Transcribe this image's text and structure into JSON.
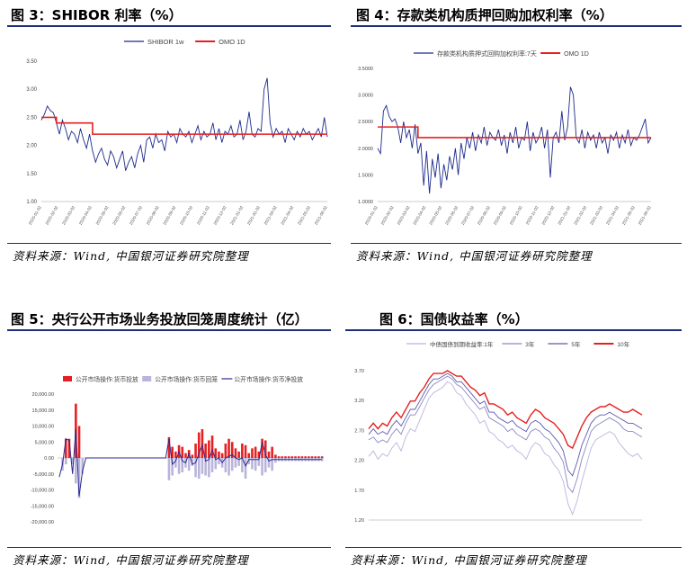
{
  "colors": {
    "navy": "#1c2a8c",
    "red": "#e62020",
    "lav": "#b9b4dc",
    "rule": "#1f2e7a"
  },
  "source_text": "资料来源：Wind, 中国银河证券研究院整理",
  "chart_data": [
    {
      "id": "fig3",
      "type": "line",
      "title": "图 3：SHIBOR 利率（%）",
      "ylim": [
        1.0,
        3.5
      ],
      "yticks": [
        "1.00",
        "1.50",
        "2.00",
        "2.50",
        "3.00",
        "3.50"
      ],
      "xticks": [
        "2020-01-02",
        "2020-02-02",
        "2020-03-02",
        "2020-04-02",
        "2020-05-02",
        "2020-06-02",
        "2020-07-02",
        "2020-08-02",
        "2020-09-02",
        "2020-10-02",
        "2020-11-02",
        "2020-12-02",
        "2021-01-02",
        "2021-02-02",
        "2021-03-02",
        "2021-04-02",
        "2021-05-02",
        "2021-06-02"
      ],
      "series": [
        {
          "name": "SHIBOR 1w",
          "color": "#1c2a8c",
          "values": [
            2.45,
            2.55,
            2.7,
            2.62,
            2.58,
            2.4,
            2.2,
            2.45,
            2.3,
            2.1,
            2.25,
            2.2,
            2.05,
            2.3,
            2.1,
            1.95,
            2.2,
            1.9,
            1.7,
            1.85,
            1.95,
            1.75,
            1.65,
            1.9,
            1.8,
            1.6,
            1.75,
            1.9,
            1.55,
            1.7,
            1.8,
            1.6,
            1.85,
            2.0,
            1.7,
            2.1,
            2.15,
            1.95,
            2.2,
            2.05,
            2.1,
            1.9,
            2.25,
            2.15,
            2.2,
            2.05,
            2.3,
            2.2,
            2.15,
            2.25,
            2.05,
            2.2,
            2.35,
            2.1,
            2.25,
            2.15,
            2.2,
            2.4,
            2.1,
            2.3,
            2.05,
            2.25,
            2.2,
            2.35,
            2.15,
            2.2,
            2.45,
            2.1,
            2.25,
            2.6,
            2.2,
            2.15,
            2.3,
            2.25,
            3.0,
            3.2,
            2.4,
            2.15,
            2.3,
            2.2,
            2.25,
            2.05,
            2.3,
            2.2,
            2.1,
            2.25,
            2.15,
            2.3,
            2.2,
            2.25,
            2.1,
            2.2,
            2.3,
            2.15,
            2.5,
            2.15
          ]
        },
        {
          "name": "OMO 1D",
          "color": "#e62020",
          "values": [
            2.5,
            2.5,
            2.5,
            2.5,
            2.5,
            2.4,
            2.4,
            2.4,
            2.4,
            2.4,
            2.4,
            2.4,
            2.4,
            2.4,
            2.4,
            2.4,
            2.4,
            2.2,
            2.2,
            2.2,
            2.2,
            2.2,
            2.2,
            2.2,
            2.2,
            2.2,
            2.2,
            2.2,
            2.2,
            2.2,
            2.2,
            2.2,
            2.2,
            2.2,
            2.2,
            2.2,
            2.2,
            2.2,
            2.2,
            2.2,
            2.2,
            2.2,
            2.2,
            2.2,
            2.2,
            2.2,
            2.2,
            2.2,
            2.2,
            2.2,
            2.2,
            2.2,
            2.2,
            2.2,
            2.2,
            2.2,
            2.2,
            2.2,
            2.2,
            2.2,
            2.2,
            2.2,
            2.2,
            2.2,
            2.2,
            2.2,
            2.2,
            2.2,
            2.2,
            2.2,
            2.2,
            2.2,
            2.2,
            2.2,
            2.2,
            2.2,
            2.2,
            2.2,
            2.2,
            2.2,
            2.2,
            2.2,
            2.2,
            2.2,
            2.2,
            2.2,
            2.2,
            2.2,
            2.2,
            2.2,
            2.2,
            2.2,
            2.2,
            2.2,
            2.2,
            2.2
          ]
        }
      ]
    },
    {
      "id": "fig4",
      "type": "line",
      "title": "图 4：存款类机构质押回购加权利率（%）",
      "ylim": [
        1.0,
        3.5
      ],
      "yticks": [
        "1.0000",
        "1.5000",
        "2.0000",
        "2.5000",
        "3.0000",
        "3.5000"
      ],
      "xticks": [
        "2020-01-02",
        "2020-02-02",
        "2020-03-02",
        "2020-04-02",
        "2020-05-02",
        "2020-06-02",
        "2020-07-02",
        "2020-08-02",
        "2020-09-02",
        "2020-10-02",
        "2020-11-02",
        "2020-12-02",
        "2021-01-02",
        "2021-02-02",
        "2021-03-02",
        "2021-04-02",
        "2021-05-02",
        "2021-06-02"
      ],
      "series": [
        {
          "name": "存款类机构质押式回购加权利率:7天",
          "color": "#1c2a8c",
          "values": [
            2.0,
            1.9,
            2.7,
            2.8,
            2.6,
            2.5,
            2.55,
            2.4,
            2.1,
            2.5,
            2.2,
            2.35,
            2.0,
            2.45,
            1.9,
            2.1,
            1.3,
            1.95,
            1.15,
            1.8,
            1.45,
            1.9,
            1.25,
            1.7,
            1.4,
            1.85,
            1.6,
            2.0,
            1.5,
            2.1,
            1.8,
            2.2,
            2.0,
            2.3,
            1.95,
            2.25,
            2.1,
            2.4,
            2.05,
            2.3,
            2.2,
            2.15,
            2.35,
            2.05,
            2.25,
            1.9,
            2.3,
            2.1,
            2.4,
            2.0,
            2.2,
            2.15,
            2.5,
            1.95,
            2.3,
            2.1,
            2.2,
            2.4,
            2.0,
            2.35,
            1.45,
            2.2,
            2.3,
            2.1,
            2.7,
            2.15,
            2.4,
            3.15,
            3.0,
            2.2,
            2.1,
            2.35,
            2.0,
            2.3,
            2.15,
            2.25,
            2.0,
            2.3,
            2.1,
            2.2,
            1.9,
            2.25,
            2.15,
            2.3,
            2.0,
            2.25,
            2.1,
            2.35,
            2.05,
            2.2,
            2.15,
            2.25,
            2.4,
            2.55,
            2.1,
            2.2
          ]
        },
        {
          "name": "OMO 1D",
          "color": "#e62020",
          "values": [
            2.4,
            2.4,
            2.4,
            2.4,
            2.4,
            2.4,
            2.4,
            2.4,
            2.4,
            2.4,
            2.4,
            2.4,
            2.4,
            2.4,
            2.2,
            2.2,
            2.2,
            2.2,
            2.2,
            2.2,
            2.2,
            2.2,
            2.2,
            2.2,
            2.2,
            2.2,
            2.2,
            2.2,
            2.2,
            2.2,
            2.2,
            2.2,
            2.2,
            2.2,
            2.2,
            2.2,
            2.2,
            2.2,
            2.2,
            2.2,
            2.2,
            2.2,
            2.2,
            2.2,
            2.2,
            2.2,
            2.2,
            2.2,
            2.2,
            2.2,
            2.2,
            2.2,
            2.2,
            2.2,
            2.2,
            2.2,
            2.2,
            2.2,
            2.2,
            2.2,
            2.2,
            2.2,
            2.2,
            2.2,
            2.2,
            2.2,
            2.2,
            2.2,
            2.2,
            2.2,
            2.2,
            2.2,
            2.2,
            2.2,
            2.2,
            2.2,
            2.2,
            2.2,
            2.2,
            2.2,
            2.2,
            2.2,
            2.2,
            2.2,
            2.2,
            2.2,
            2.2,
            2.2,
            2.2,
            2.2,
            2.2,
            2.2,
            2.2,
            2.2,
            2.2,
            2.2
          ]
        }
      ]
    },
    {
      "id": "fig5",
      "type": "bar",
      "title": "图 5：央行公开市场业务投放回笼周度统计（亿）",
      "ylim": [
        -20000,
        20000
      ],
      "yticks": [
        "20,000.00",
        "15,000.00",
        "10,000.00",
        "5,000.00",
        "0.00",
        "-5,000.00",
        "-10,000.00",
        "-15,000.00",
        "-20,000.00"
      ],
      "series": [
        {
          "name": "公开市场操作:货币投放",
          "color": "#e62020",
          "values": [
            0,
            0,
            6000,
            6000,
            0,
            17000,
            10000,
            0,
            0,
            0,
            0,
            0,
            0,
            0,
            0,
            0,
            0,
            0,
            0,
            0,
            0,
            0,
            0,
            0,
            0,
            0,
            0,
            0,
            0,
            0,
            0,
            0,
            0,
            6500,
            3500,
            2000,
            4000,
            3500,
            1500,
            2500,
            1000,
            4500,
            8000,
            9000,
            4500,
            5500,
            7000,
            3000,
            2000,
            1500,
            4500,
            6000,
            5000,
            3000,
            2000,
            4500,
            4000,
            1500,
            3000,
            3500,
            2000,
            6000,
            5500,
            2000,
            3500,
            1000,
            500,
            500,
            500,
            500,
            500,
            500,
            500,
            500,
            500,
            500,
            500,
            500,
            500,
            500
          ]
        },
        {
          "name": "公开市场操作:货币回笼",
          "color": "#b9b4dc",
          "values": [
            0,
            -4000,
            -2000,
            0,
            -2000,
            -8000,
            -12500,
            -5000,
            0,
            0,
            0,
            0,
            0,
            0,
            0,
            0,
            0,
            0,
            0,
            0,
            0,
            0,
            0,
            0,
            0,
            0,
            0,
            0,
            0,
            0,
            0,
            0,
            0,
            -7000,
            -5500,
            -3000,
            -5000,
            -4500,
            -3000,
            -4000,
            -2500,
            -6000,
            -6500,
            -5000,
            -5500,
            -6000,
            -4500,
            -3500,
            -2000,
            -3000,
            -4500,
            -5500,
            -4000,
            -3000,
            -2500,
            -4500,
            -6500,
            -2000,
            -3500,
            -4000,
            -2500,
            -5500,
            -4500,
            -3000,
            -4000,
            -1500,
            -1000,
            -1000,
            -1000,
            -1000,
            -1000,
            -1000,
            -1000,
            -1000,
            -1000,
            -1000,
            -1000,
            -1000,
            -1000,
            -1000
          ]
        },
        {
          "name": "公开市场操作:货币净投放",
          "color": "#2a2a90",
          "values": [
            -6000,
            -2000,
            6000,
            5500,
            -5000,
            9000,
            -12000,
            -4000,
            0,
            0,
            0,
            0,
            0,
            0,
            0,
            0,
            0,
            0,
            0,
            0,
            0,
            0,
            0,
            0,
            0,
            0,
            0,
            0,
            0,
            0,
            0,
            0,
            0,
            6000,
            -2000,
            -1000,
            2000,
            -1000,
            -1500,
            1500,
            -2000,
            -1500,
            1500,
            4000,
            -1000,
            -500,
            2500,
            -500,
            0,
            -1500,
            0,
            500,
            1000,
            0,
            -500,
            0,
            -2500,
            -500,
            -500,
            -500,
            -500,
            5000,
            1000,
            -1000,
            -500,
            -500,
            -500,
            -500,
            -500,
            -500,
            -500,
            -500,
            -500,
            -500,
            -500,
            -500,
            -500,
            -500,
            -500,
            -500
          ]
        }
      ]
    },
    {
      "id": "fig6",
      "type": "line",
      "title": "图 6：国债收益率（%）",
      "ylim": [
        1.2,
        3.9
      ],
      "yticks": [
        "1.20",
        "1.70",
        "2.20",
        "2.70",
        "3.20",
        "3.70"
      ],
      "series": [
        {
          "name": "中债国债到期收益率:1年",
          "color": "#b9b4dc",
          "values": [
            2.35,
            2.45,
            2.3,
            2.4,
            2.35,
            2.5,
            2.6,
            2.45,
            2.7,
            2.85,
            2.8,
            3.0,
            3.2,
            3.4,
            3.5,
            3.55,
            3.6,
            3.7,
            3.65,
            3.5,
            3.45,
            3.3,
            3.2,
            3.1,
            2.95,
            3.0,
            2.8,
            2.75,
            2.65,
            2.6,
            2.5,
            2.55,
            2.45,
            2.4,
            2.3,
            2.5,
            2.6,
            2.55,
            2.4,
            2.35,
            2.2,
            2.1,
            1.9,
            1.5,
            1.3,
            1.55,
            1.9,
            2.2,
            2.5,
            2.65,
            2.7,
            2.75,
            2.8,
            2.75,
            2.6,
            2.5,
            2.4,
            2.35,
            2.4,
            2.3
          ]
        },
        {
          "name": "3年",
          "color": "#8a86c6",
          "values": [
            2.65,
            2.7,
            2.6,
            2.65,
            2.6,
            2.75,
            2.85,
            2.75,
            2.95,
            3.1,
            3.1,
            3.25,
            3.4,
            3.55,
            3.65,
            3.7,
            3.75,
            3.8,
            3.75,
            3.65,
            3.6,
            3.5,
            3.4,
            3.3,
            3.2,
            3.25,
            3.05,
            3.0,
            2.95,
            2.9,
            2.8,
            2.85,
            2.75,
            2.7,
            2.65,
            2.8,
            2.85,
            2.8,
            2.7,
            2.65,
            2.5,
            2.4,
            2.25,
            1.8,
            1.7,
            1.95,
            2.3,
            2.55,
            2.8,
            2.9,
            2.95,
            3.0,
            3.05,
            3.0,
            2.95,
            2.85,
            2.8,
            2.8,
            2.75,
            2.7
          ]
        },
        {
          "name": "5年",
          "color": "#5b5bab",
          "values": [
            2.75,
            2.85,
            2.75,
            2.8,
            2.75,
            2.9,
            3.0,
            2.9,
            3.05,
            3.2,
            3.2,
            3.35,
            3.5,
            3.65,
            3.75,
            3.75,
            3.8,
            3.85,
            3.8,
            3.7,
            3.7,
            3.6,
            3.5,
            3.4,
            3.3,
            3.35,
            3.15,
            3.15,
            3.05,
            3.0,
            2.95,
            3.0,
            2.9,
            2.85,
            2.8,
            2.95,
            3.0,
            2.95,
            2.85,
            2.8,
            2.7,
            2.6,
            2.45,
            2.1,
            2.0,
            2.25,
            2.55,
            2.75,
            2.95,
            3.05,
            3.1,
            3.1,
            3.15,
            3.1,
            3.05,
            3.0,
            2.95,
            2.95,
            2.9,
            2.85
          ]
        },
        {
          "name": "10年",
          "color": "#e62020",
          "values": [
            2.85,
            2.95,
            2.85,
            2.95,
            2.9,
            3.05,
            3.15,
            3.05,
            3.2,
            3.35,
            3.35,
            3.5,
            3.6,
            3.75,
            3.85,
            3.85,
            3.85,
            3.9,
            3.85,
            3.8,
            3.8,
            3.7,
            3.6,
            3.55,
            3.45,
            3.5,
            3.3,
            3.3,
            3.25,
            3.2,
            3.1,
            3.15,
            3.05,
            3.0,
            2.95,
            3.1,
            3.2,
            3.15,
            3.05,
            3.0,
            2.95,
            2.85,
            2.75,
            2.55,
            2.5,
            2.7,
            2.9,
            3.05,
            3.15,
            3.2,
            3.25,
            3.25,
            3.3,
            3.25,
            3.2,
            3.15,
            3.15,
            3.2,
            3.15,
            3.1
          ]
        }
      ]
    }
  ]
}
